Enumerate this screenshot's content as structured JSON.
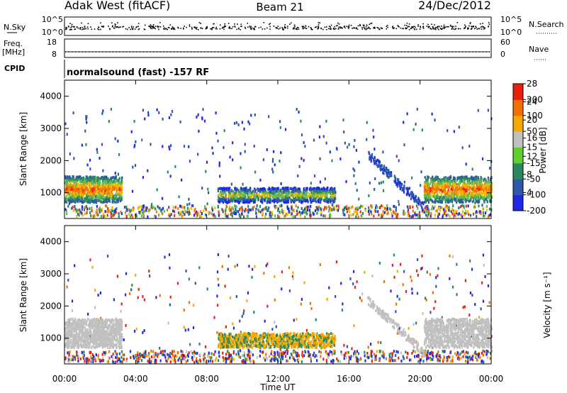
{
  "header": {
    "station": "Adak West (fitACF)",
    "beam": "Beam 21",
    "date": "24/Dec/2012"
  },
  "status_panels": {
    "nsky_label": "N.Sky",
    "nsky_ticks": [
      "10^5",
      "10^0"
    ],
    "nsearch_label": "N.Search",
    "nsearch_ticks": [
      "10^5",
      "10^0"
    ],
    "freq_label": "Freq.",
    "freq_unit": "[MHz]",
    "freq_ticks": [
      "18",
      "8"
    ],
    "nave_label": "Nave",
    "nave_ticks": [
      "60",
      "0"
    ],
    "cpid_label": "CPID",
    "cpid_text": "normalsound (fast) -157 RF"
  },
  "time_axis": {
    "label": "Time UT",
    "ticks": [
      "00:00",
      "04:00",
      "08:00",
      "12:00",
      "16:00",
      "20:00",
      "00:00"
    ]
  },
  "chart_data": [
    {
      "type": "heatmap",
      "title": "",
      "xlabel": "Time UT",
      "ylabel": "Slant Range [km]",
      "xlim": [
        0,
        24
      ],
      "ylim": [
        200,
        4500
      ],
      "yticks": [
        "1000",
        "2000",
        "3000",
        "4000"
      ],
      "colorbar_label": "Power [dB]",
      "colorbar_ticks": [
        "4",
        "8",
        "12",
        "16",
        "20",
        "24",
        "28"
      ],
      "colorbar_range": [
        0,
        30
      ],
      "colors": [
        "#1e28e6",
        "#2f58a8",
        "#2a8a5e",
        "#5fb85a",
        "#f5b800",
        "#f07800",
        "#ee2a0f"
      ],
      "features": [
        {
          "name": "morning E/F echoes",
          "t_start": 0.0,
          "t_end": 3.2,
          "range_km": [
            700,
            1500
          ],
          "power_db": 26
        },
        {
          "name": "daytime ground scatter",
          "t_start": 8.6,
          "t_end": 15.2,
          "range_km": [
            700,
            1150
          ],
          "power_db": 20
        },
        {
          "name": "evening echoes",
          "t_start": 20.2,
          "t_end": 24.0,
          "range_km": [
            700,
            1500
          ],
          "power_db": 26
        }
      ]
    },
    {
      "type": "heatmap",
      "title": "",
      "xlabel": "Time UT",
      "ylabel": "Slant Range [km]",
      "xlim": [
        0,
        24
      ],
      "ylim": [
        200,
        4500
      ],
      "yticks": [
        "1000",
        "2000",
        "3000",
        "4000"
      ],
      "colorbar_label": "Velocity [m s⁻¹]",
      "colorbar_ticks": [
        "200",
        "100",
        "50",
        "15",
        "-15",
        "-50",
        "-100",
        "-200"
      ],
      "colorbar_range": [
        -250,
        250
      ],
      "colors": [
        "#1e28e6",
        "#2f58a8",
        "#2a8a5e",
        "#5fd030",
        "#c0c0c0",
        "#f5a800",
        "#f07000",
        "#e8200f"
      ],
      "features": [
        {
          "name": "morning low-velocity echoes",
          "t_start": 0.0,
          "t_end": 3.2,
          "range_km": [
            700,
            1600
          ],
          "velocity": 0
        },
        {
          "name": "daytime ground scatter",
          "t_start": 8.6,
          "t_end": 15.2,
          "range_km": [
            700,
            1150
          ],
          "velocity": -30
        },
        {
          "name": "evening echoes",
          "t_start": 20.2,
          "t_end": 24.0,
          "range_km": [
            700,
            1600
          ],
          "velocity": 0
        }
      ]
    }
  ]
}
